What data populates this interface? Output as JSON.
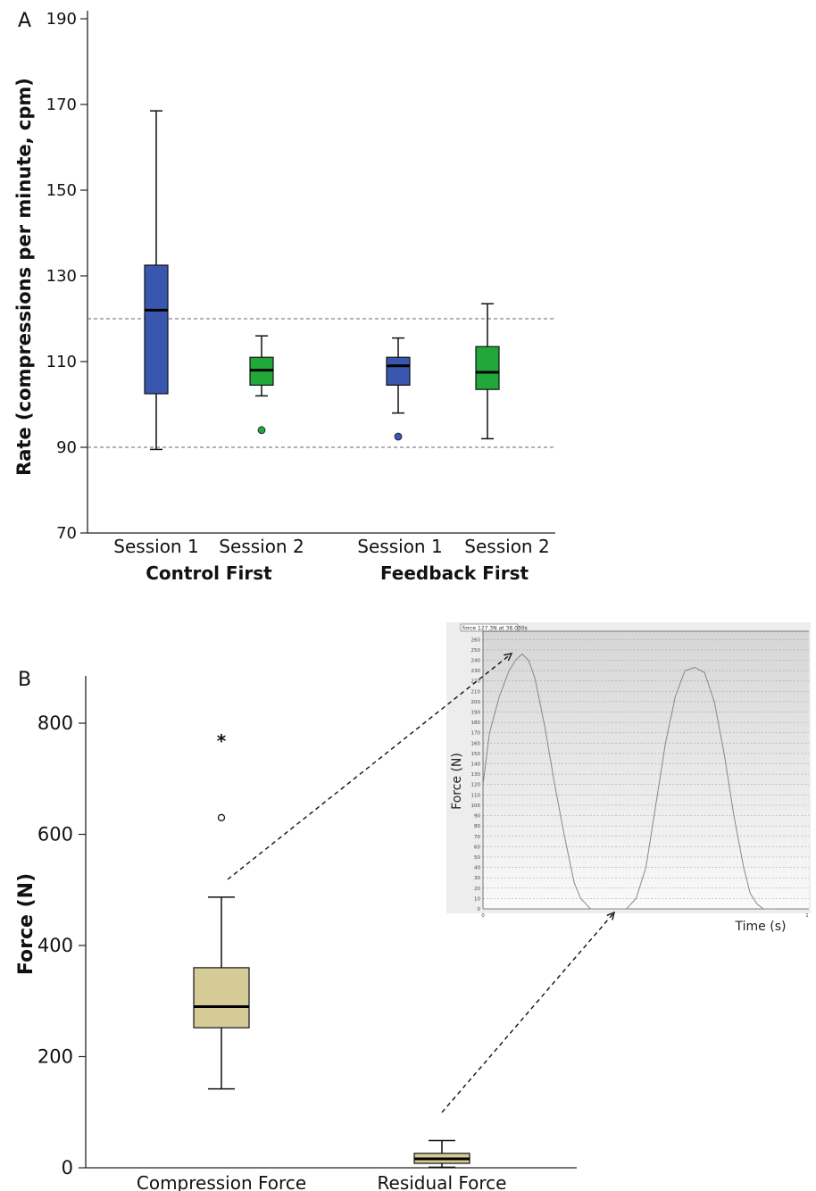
{
  "panel_a": {
    "label": "A"
  },
  "panel_b": {
    "label": "B"
  },
  "chart_data": [
    {
      "type": "boxplot",
      "ylabel": "Rate (compressions per minute, cpm)",
      "yticks": [
        70,
        90,
        110,
        130,
        150,
        170,
        190
      ],
      "ylim": [
        70,
        190
      ],
      "reference_lines": [
        90,
        120
      ],
      "groups": [
        {
          "label": "Control First",
          "categories": [
            "Session 1",
            "Session 2"
          ]
        },
        {
          "label": "Feedback First",
          "categories": [
            "Session 1",
            "Session 2"
          ]
        }
      ],
      "boxes": [
        {
          "group": "Control First",
          "category": "Session 1",
          "color": "#3a57b0",
          "min": 89.5,
          "q1": 102.5,
          "median": 122,
          "q3": 132.5,
          "max": 168.5,
          "outliers": []
        },
        {
          "group": "Control First",
          "category": "Session 2",
          "color": "#22a83a",
          "min": 102,
          "q1": 104.5,
          "median": 108,
          "q3": 111,
          "max": 116,
          "outliers": [
            94
          ]
        },
        {
          "group": "Feedback First",
          "category": "Session 1",
          "color": "#3a57b0",
          "min": 98,
          "q1": 104.5,
          "median": 109,
          "q3": 111,
          "max": 115.5,
          "outliers": [
            92.5
          ]
        },
        {
          "group": "Feedback First",
          "category": "Session 2",
          "color": "#22a83a",
          "min": 92,
          "q1": 103.5,
          "median": 107.5,
          "q3": 113.5,
          "max": 123.5,
          "outliers": []
        }
      ],
      "grid": false
    },
    {
      "type": "boxplot",
      "ylabel": "Force (N)",
      "yticks": [
        0,
        200,
        400,
        600,
        800
      ],
      "ylim": [
        0,
        880
      ],
      "categories": [
        "Compression Force",
        "Residual Force"
      ],
      "boxes": [
        {
          "category": "Compression Force",
          "color": "#d4cb97",
          "min": 142,
          "q1": 252,
          "median": 290,
          "q3": 360,
          "max": 487,
          "outliers": [
            630
          ],
          "extremes": [
            771
          ]
        },
        {
          "category": "Residual Force",
          "color": "#d4cb97",
          "min": 1,
          "q1": 8,
          "median": 16,
          "q3": 26,
          "max": 49,
          "outliers": [],
          "extremes": []
        }
      ],
      "extreme_marker": "*",
      "outlier_marker": "o",
      "grid": false
    },
    {
      "type": "line",
      "header": "force 127.3N at 38.030s",
      "xlabel": "Time (s)",
      "ylabel": "Force (N)",
      "yticks": [
        0,
        10,
        20,
        30,
        40,
        50,
        60,
        70,
        80,
        90,
        100,
        110,
        120,
        130,
        140,
        150,
        160,
        170,
        180,
        190,
        200,
        210,
        220,
        230,
        240,
        250,
        260
      ],
      "ylim": [
        0,
        268
      ],
      "xticks": [
        "0",
        "1"
      ],
      "xlim": [
        0,
        1
      ],
      "grid": true,
      "x": [
        0,
        0.02,
        0.05,
        0.08,
        0.1,
        0.12,
        0.14,
        0.16,
        0.19,
        0.22,
        0.25,
        0.28,
        0.3,
        0.33,
        0.36,
        0.39,
        0.41,
        0.43,
        0.44,
        0.47,
        0.5,
        0.53,
        0.56,
        0.59,
        0.62,
        0.65,
        0.68,
        0.71,
        0.74,
        0.77,
        0.8,
        0.82,
        0.84,
        0.86,
        0.88,
        0.9
      ],
      "y": [
        120,
        170,
        205,
        230,
        240,
        246,
        240,
        222,
        175,
        120,
        70,
        25,
        10,
        0,
        0,
        0,
        0,
        0,
        0,
        10,
        40,
        100,
        160,
        205,
        230,
        233,
        228,
        200,
        150,
        90,
        40,
        15,
        5,
        0,
        0,
        0
      ]
    }
  ]
}
